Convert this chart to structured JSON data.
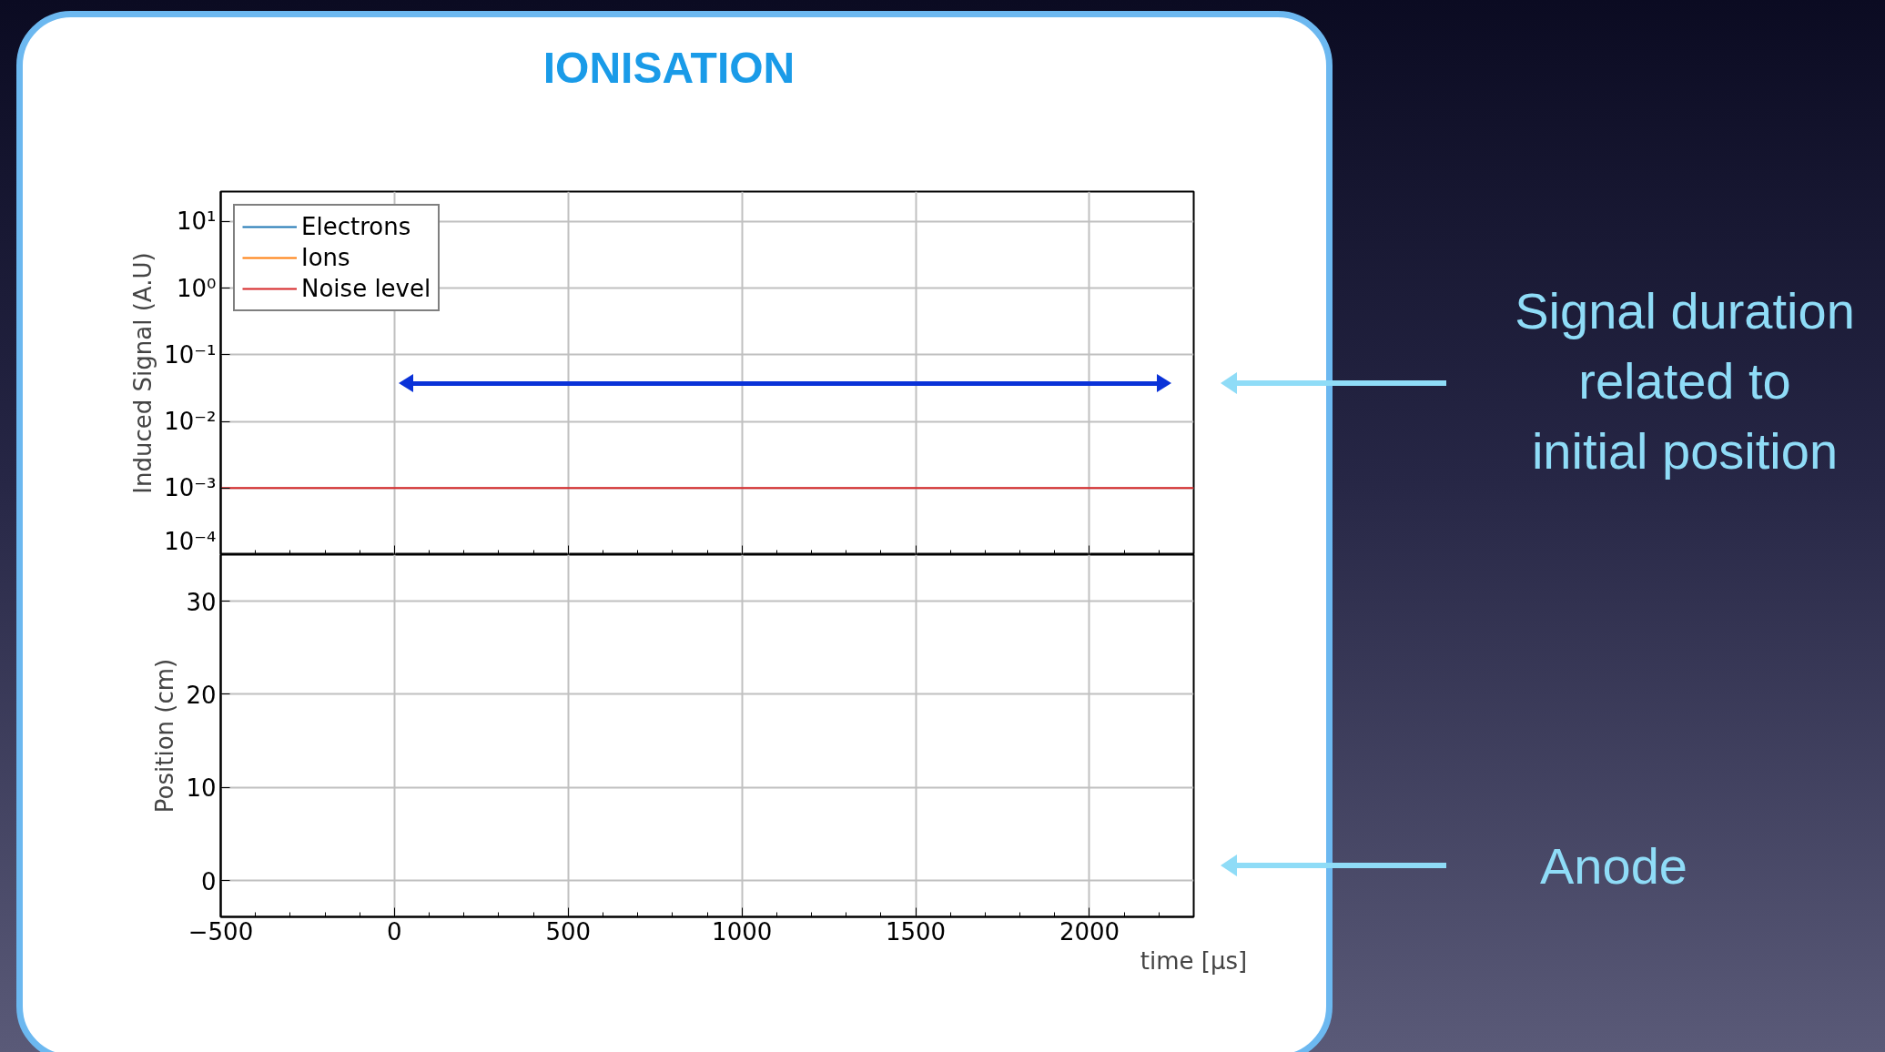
{
  "chart_data": [
    {
      "type": "line",
      "title": "IONISATION",
      "ylabel": "Induced Signal (A.U)",
      "log": true,
      "xlim": [
        -500,
        2300
      ],
      "xticks": [
        -500,
        0,
        500,
        1000,
        1500,
        2000
      ],
      "ylim": [
        0.0001,
        28
      ],
      "yticks": [
        {
          "value": 10,
          "label": "10¹"
        },
        {
          "value": 1,
          "label": "10⁰"
        },
        {
          "value": 0.1,
          "label": "10⁻¹"
        },
        {
          "value": 0.01,
          "label": "10⁻²"
        },
        {
          "value": 0.001,
          "label": "10⁻³"
        },
        {
          "value": 0.0001,
          "label": "10⁻⁴"
        }
      ],
      "tick_labels": "y",
      "grid": true,
      "legend": "top left",
      "series": [
        {
          "name": "Electrons",
          "color": "#1f77b4",
          "values": [
            null,
            null
          ]
        },
        {
          "name": "Ions",
          "color": "#ff7f0e",
          "values": [
            null,
            null
          ]
        },
        {
          "name": "Noise level",
          "color": "#d62728",
          "x": [
            -500,
            2300
          ],
          "values": [
            0.001,
            0.001
          ]
        }
      ],
      "annotations": [
        "Signal duration related to initial position"
      ]
    },
    {
      "type": "line",
      "ylabel": "Position (cm)",
      "xlabel": "time [μs]",
      "xlim": [
        -500,
        2300
      ],
      "xticks": [
        -500,
        0,
        500,
        1000,
        1500,
        2000
      ],
      "ylim": [
        -3.9,
        35
      ],
      "yticks": [
        0,
        10,
        20,
        30
      ],
      "grid": true,
      "annotations": [
        "Anode"
      ]
    }
  ]
}
